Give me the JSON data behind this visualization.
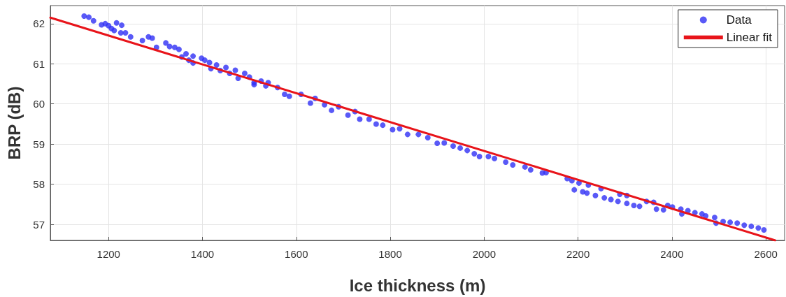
{
  "chart_data": {
    "type": "scatter",
    "xlabel": "Ice thickness (m)",
    "ylabel": "BRP (dB)",
    "xlim": [
      1076,
      2640
    ],
    "xticks": [
      1200,
      1400,
      1600,
      1800,
      2000,
      2200,
      2400,
      2600
    ],
    "ylim": [
      56.6,
      62.45
    ],
    "yticks": [
      57,
      58,
      59,
      60,
      61,
      62
    ],
    "grid": true,
    "legend": "top right",
    "marker": "circle",
    "series": [
      {
        "name": "Data",
        "color": "#2f2ff5",
        "x": [
          1148,
          1158,
          1168,
          1185,
          1193,
          1200,
          1206,
          1212,
          1217,
          1228,
          1226,
          1236,
          1247,
          1272,
          1285,
          1293,
          1302,
          1322,
          1330,
          1341,
          1350,
          1356,
          1365,
          1371,
          1380,
          1380,
          1398,
          1405,
          1415,
          1418,
          1430,
          1438,
          1450,
          1458,
          1470,
          1476,
          1490,
          1500,
          1510,
          1525,
          1535,
          1510,
          1540,
          1560,
          1575,
          1585,
          1610,
          1630,
          1640,
          1660,
          1675,
          1690,
          1710,
          1725,
          1735,
          1755,
          1770,
          1784,
          1805,
          1820,
          1837,
          1860,
          1880,
          1900,
          1915,
          1934,
          1949,
          1964,
          1979,
          1990,
          2009,
          2022,
          2046,
          2061,
          2087,
          2099,
          2124,
          2132,
          2177,
          2187,
          2202,
          2192,
          2210,
          2219,
          2222,
          2237,
          2249,
          2256,
          2270,
          2285,
          2289,
          2304,
          2304,
          2319,
          2331,
          2346,
          2361,
          2367,
          2382,
          2391,
          2401,
          2419,
          2421,
          2434,
          2449,
          2464,
          2472,
          2491,
          2494,
          2509,
          2524,
          2539,
          2554,
          2569,
          2584,
          2596
        ],
        "values": [
          62.19,
          62.16,
          62.07,
          61.97,
          62.0,
          61.95,
          61.88,
          61.83,
          62.02,
          61.96,
          61.77,
          61.77,
          61.67,
          61.58,
          61.67,
          61.64,
          61.41,
          61.52,
          61.43,
          61.41,
          61.36,
          61.17,
          61.25,
          61.09,
          61.19,
          61.02,
          61.14,
          61.09,
          61.03,
          60.88,
          60.97,
          60.83,
          60.91,
          60.76,
          60.84,
          60.64,
          60.76,
          60.67,
          60.48,
          60.57,
          60.45,
          60.53,
          60.53,
          60.41,
          60.24,
          60.19,
          60.24,
          60.02,
          60.14,
          59.98,
          59.84,
          59.93,
          59.72,
          59.81,
          59.62,
          59.62,
          59.5,
          59.47,
          59.36,
          59.38,
          59.24,
          59.24,
          59.16,
          59.02,
          59.03,
          58.95,
          58.9,
          58.84,
          58.76,
          58.69,
          58.69,
          58.64,
          58.55,
          58.48,
          58.43,
          58.36,
          58.28,
          58.29,
          58.14,
          58.09,
          58.03,
          57.86,
          57.81,
          57.78,
          57.98,
          57.72,
          57.89,
          57.66,
          57.62,
          57.57,
          57.75,
          57.72,
          57.52,
          57.47,
          57.45,
          57.57,
          57.55,
          57.38,
          57.36,
          57.47,
          57.43,
          57.38,
          57.26,
          57.34,
          57.29,
          57.26,
          57.21,
          57.17,
          57.03,
          57.07,
          57.05,
          57.03,
          56.98,
          56.95,
          56.91,
          56.86
        ]
      },
      {
        "name": "Linear fit",
        "color": "#e8141a",
        "type": "line",
        "marker": "none",
        "x": [
          1076,
          2620
        ],
        "values": [
          62.15,
          56.6
        ]
      }
    ]
  }
}
